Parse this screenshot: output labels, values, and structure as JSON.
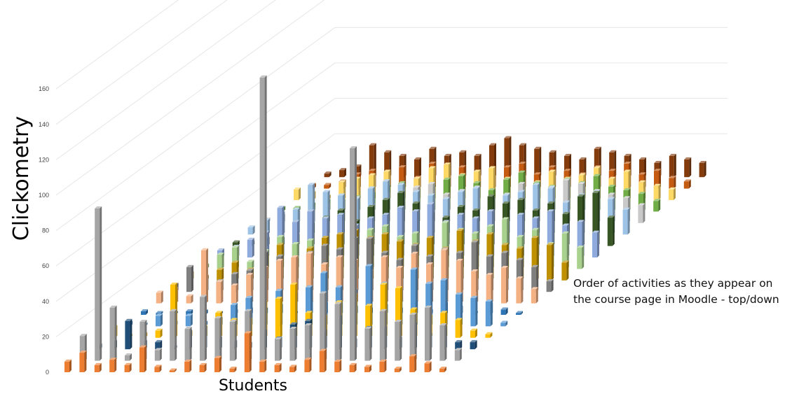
{
  "chart_data": {
    "type": "bar",
    "subtype": "3d-column",
    "title": "",
    "ylabel": "Clickometry",
    "xlabel": "Students",
    "depth_label_lines": [
      "Order of activities as they appear on",
      "the course page in Moodle - top/down"
    ],
    "ylim": [
      0,
      160
    ],
    "yticks": [
      "0",
      "20",
      "40",
      "60",
      "80",
      "100",
      "120",
      "140",
      "160"
    ],
    "grid": true,
    "legend": "none",
    "num_students": 26,
    "series_colors": [
      "#ed7d31",
      "#a5a5a5",
      "#1f4e79",
      "#ffc000",
      "#5b9bd5",
      "#2e75b6",
      "#f4b183",
      "#7f7f7f",
      "#bf9000",
      "#a9d18e",
      "#8faadc",
      "#375623",
      "#9dc3e6",
      "#c9c9c9",
      "#70ad47",
      "#ffd966",
      "#c55a11",
      "#843c0c"
    ],
    "series": [
      {
        "values": [
          6,
          11,
          4,
          7,
          4,
          14,
          3,
          1,
          6,
          4,
          8,
          2,
          22,
          6,
          4,
          3,
          7,
          12,
          6,
          4,
          3,
          6,
          2,
          9,
          5,
          2
        ]
      },
      {
        "values": [
          14,
          86,
          30,
          3,
          22,
          6,
          28,
          18,
          36,
          24,
          22,
          28,
          160,
          12,
          18,
          20,
          38,
          32,
          120,
          18,
          28,
          22,
          26,
          30,
          20,
          6
        ]
      },
      {
        "values": [
          2,
          4,
          16,
          4,
          4,
          1,
          10,
          12,
          6,
          4,
          3,
          10,
          6,
          14,
          16,
          10,
          18,
          5,
          12,
          12,
          6,
          14,
          8,
          12,
          4,
          4
        ]
      },
      {
        "values": [
          6,
          1,
          2,
          4,
          30,
          3,
          6,
          14,
          10,
          10,
          20,
          22,
          30,
          14,
          12,
          20,
          24,
          18,
          30,
          28,
          16,
          12,
          14,
          10,
          4,
          2
        ]
      },
      {
        "values": [
          2,
          1,
          6,
          2,
          6,
          2,
          4,
          12,
          16,
          8,
          20,
          18,
          22,
          30,
          22,
          20,
          34,
          24,
          20,
          32,
          24,
          26,
          18,
          16,
          14,
          2
        ]
      },
      {
        "values": [
          2,
          1,
          1,
          2,
          2,
          1,
          2,
          3,
          3,
          5,
          1,
          7,
          6,
          6,
          4,
          3,
          5,
          3,
          7,
          2,
          6,
          4,
          1,
          6,
          3,
          1
        ]
      },
      {
        "values": [
          6,
          8,
          4,
          30,
          12,
          10,
          16,
          20,
          24,
          26,
          28,
          22,
          26,
          24,
          18,
          26,
          20,
          28,
          22,
          30,
          24,
          18,
          16,
          20,
          14,
          8
        ]
      },
      {
        "values": [
          4,
          14,
          8,
          6,
          10,
          12,
          22,
          20,
          18,
          22,
          26,
          24,
          30,
          30,
          22,
          18,
          26,
          20,
          24,
          22,
          28,
          20,
          22,
          18,
          14,
          6
        ]
      },
      {
        "values": [
          4,
          2,
          6,
          10,
          6,
          14,
          20,
          12,
          18,
          24,
          26,
          28,
          24,
          26,
          22,
          20,
          24,
          18,
          28,
          22,
          26,
          20,
          18,
          24,
          20,
          10
        ]
      },
      {
        "values": [
          2,
          8,
          12,
          4,
          10,
          18,
          14,
          16,
          12,
          14,
          16,
          22,
          24,
          18,
          20,
          16,
          26,
          22,
          20,
          24,
          28,
          18,
          22,
          14,
          20,
          12
        ]
      },
      {
        "values": [
          4,
          6,
          10,
          14,
          28,
          20,
          26,
          22,
          24,
          18,
          22,
          24,
          28,
          26,
          30,
          20,
          24,
          22,
          26,
          20,
          24,
          22,
          26,
          18,
          20,
          14
        ]
      },
      {
        "values": [
          2,
          2,
          4,
          4,
          6,
          12,
          16,
          20,
          14,
          22,
          26,
          30,
          24,
          18,
          16,
          22,
          20,
          28,
          24,
          26,
          20,
          24,
          18,
          28,
          30,
          16
        ]
      },
      {
        "values": [
          4,
          8,
          12,
          14,
          28,
          24,
          22,
          20,
          26,
          30,
          28,
          24,
          22,
          20,
          24,
          26,
          20,
          22,
          24,
          28,
          26,
          18,
          22,
          24,
          20,
          14
        ]
      },
      {
        "values": [
          2,
          4,
          6,
          8,
          10,
          12,
          14,
          10,
          16,
          18,
          20,
          22,
          16,
          18,
          20,
          14,
          16,
          22,
          18,
          20,
          24,
          22,
          18,
          16,
          14,
          10
        ]
      },
      {
        "values": [
          2,
          2,
          4,
          6,
          6,
          8,
          10,
          14,
          16,
          12,
          14,
          18,
          20,
          16,
          12,
          18,
          22,
          16,
          14,
          18,
          16,
          20,
          14,
          12,
          10,
          6
        ]
      },
      {
        "values": [
          6,
          4,
          2,
          10,
          12,
          14,
          16,
          8,
          12,
          18,
          20,
          14,
          16,
          18,
          12,
          14,
          10,
          16,
          12,
          14,
          18,
          12,
          16,
          10,
          8,
          6
        ]
      },
      {
        "values": [
          2,
          2,
          4,
          8,
          10,
          8,
          12,
          6,
          14,
          10,
          12,
          8,
          10,
          12,
          14,
          8,
          12,
          10,
          8,
          12,
          10,
          14,
          8,
          10,
          6,
          4
        ]
      },
      {
        "values": [
          2,
          4,
          6,
          18,
          14,
          12,
          10,
          16,
          12,
          14,
          12,
          18,
          22,
          18,
          16,
          14,
          12,
          10,
          16,
          14,
          12,
          10,
          8,
          12,
          10,
          8
        ]
      }
    ]
  }
}
